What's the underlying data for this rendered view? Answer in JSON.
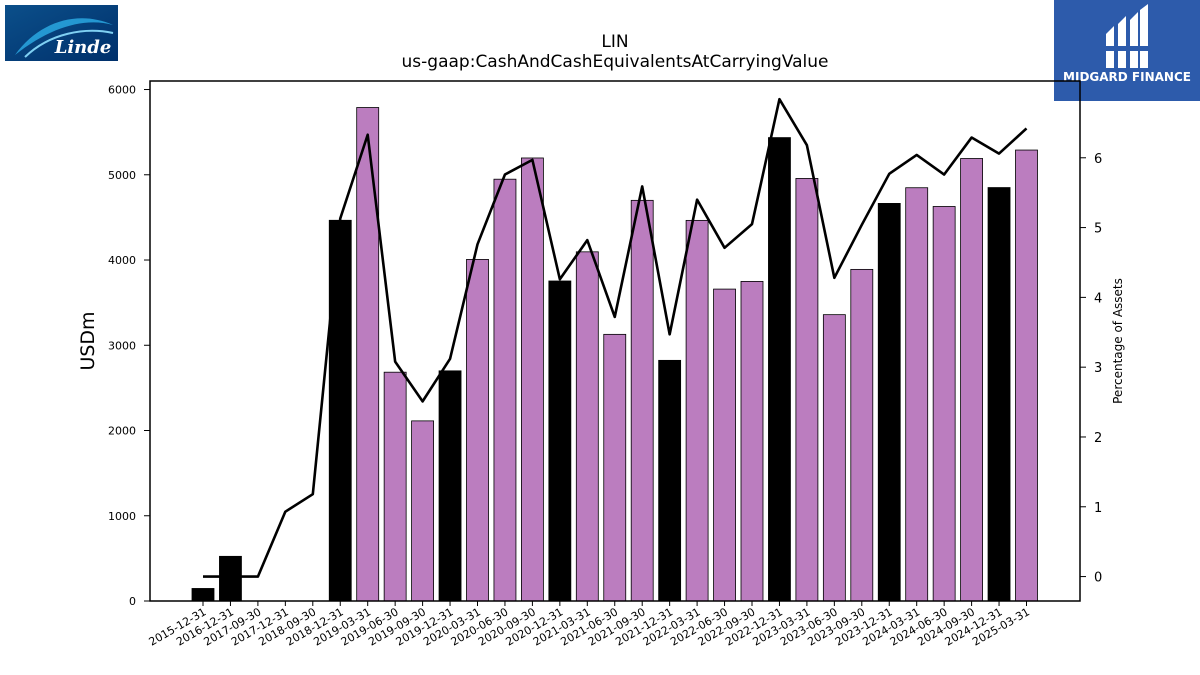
{
  "logos": {
    "left_brand": "Linde",
    "right_brand": "MIDGARD FINANCE"
  },
  "chart_data": {
    "type": "bar",
    "title": "LIN",
    "subtitle": "us-gaap:CashAndCashEquivalentsAtCarryingValue",
    "ylabel": "USDm",
    "y2label": "Percentage of Assets",
    "ylim": [
      0,
      6100
    ],
    "y2lim": [
      -0.35,
      7.1
    ],
    "yticks": [
      0,
      1000,
      2000,
      3000,
      4000,
      5000,
      6000
    ],
    "y2ticks": [
      0,
      1,
      2,
      3,
      4,
      5,
      6
    ],
    "categories": [
      "2015-12-31",
      "2016-12-31",
      "2017-09-30",
      "2017-12-31",
      "2018-09-30",
      "2018-12-31",
      "2019-03-31",
      "2019-06-30",
      "2019-09-30",
      "2019-12-31",
      "2020-03-31",
      "2020-06-30",
      "2020-09-30",
      "2020-12-31",
      "2021-03-31",
      "2021-06-30",
      "2021-09-30",
      "2021-12-31",
      "2022-03-31",
      "2022-06-30",
      "2022-09-30",
      "2022-12-31",
      "2023-03-31",
      "2023-06-30",
      "2023-09-30",
      "2023-12-31",
      "2024-03-31",
      "2024-06-30",
      "2024-09-30",
      "2024-12-31",
      "2025-03-31"
    ],
    "series": [
      {
        "type": "bar",
        "values": [
          147,
          524,
          null,
          null,
          null,
          4466,
          5789,
          2684,
          2113,
          2700,
          4007,
          4948,
          5197,
          3754,
          4096,
          3128,
          4700,
          2823,
          4465,
          3659,
          3749,
          5436,
          4957,
          3359,
          3890,
          4664,
          4848,
          4628,
          5191,
          4850,
          5290
        ]
      },
      {
        "type": "line",
        "axis": "right",
        "values": [
          0.0,
          0.0,
          0.0,
          0.93,
          1.18,
          5.13,
          6.33,
          3.08,
          2.51,
          3.12,
          4.76,
          5.76,
          5.97,
          4.26,
          4.82,
          3.72,
          5.59,
          3.47,
          5.4,
          4.71,
          5.05,
          6.84,
          6.18,
          4.28,
          5.04,
          5.77,
          6.04,
          5.76,
          6.29,
          6.06,
          6.42
        ]
      }
    ],
    "bar_colors": {
      "year_end": "#000000",
      "quarter": "#bb7dbf"
    },
    "line_color": "#000000",
    "grid": false
  }
}
